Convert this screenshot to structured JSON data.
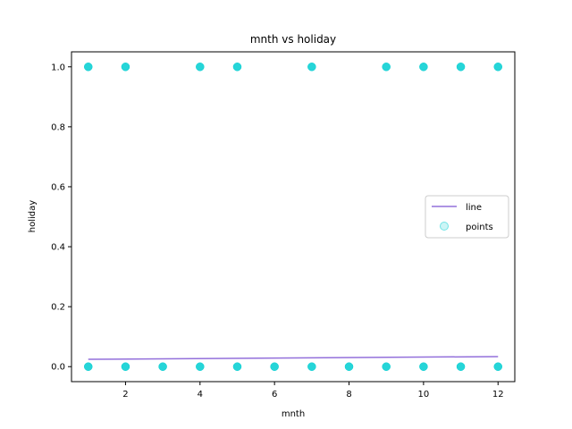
{
  "chart_data": {
    "type": "scatter",
    "title": "mnth vs holiday",
    "xlabel": "mnth",
    "ylabel": "holiday",
    "xlim": [
      0.55,
      12.45
    ],
    "ylim": [
      -0.05,
      1.05
    ],
    "xticks": [
      2,
      4,
      6,
      8,
      10,
      12
    ],
    "yticks": [
      0.0,
      0.2,
      0.4,
      0.6,
      0.8,
      1.0
    ],
    "xtick_labels": [
      "2",
      "4",
      "6",
      "8",
      "10",
      "12"
    ],
    "ytick_labels": [
      "0.0",
      "0.2",
      "0.4",
      "0.6",
      "0.8",
      "1.0"
    ],
    "grid": false,
    "legend_position": "center-right",
    "series": [
      {
        "name": "line",
        "kind": "line",
        "color": "#9370db",
        "x": [
          1,
          12
        ],
        "y": [
          0.0245,
          0.0335
        ]
      },
      {
        "name": "points",
        "kind": "scatter",
        "color": "#00ced1",
        "alpha": 0.2,
        "x": [
          1,
          2,
          3,
          4,
          5,
          6,
          7,
          8,
          9,
          10,
          11,
          12,
          1,
          2,
          4,
          5,
          7,
          9,
          10,
          11,
          12
        ],
        "y": [
          0,
          0,
          0,
          0,
          0,
          0,
          0,
          0,
          0,
          0,
          0,
          0,
          1,
          1,
          1,
          1,
          1,
          1,
          1,
          1,
          1
        ]
      }
    ]
  }
}
